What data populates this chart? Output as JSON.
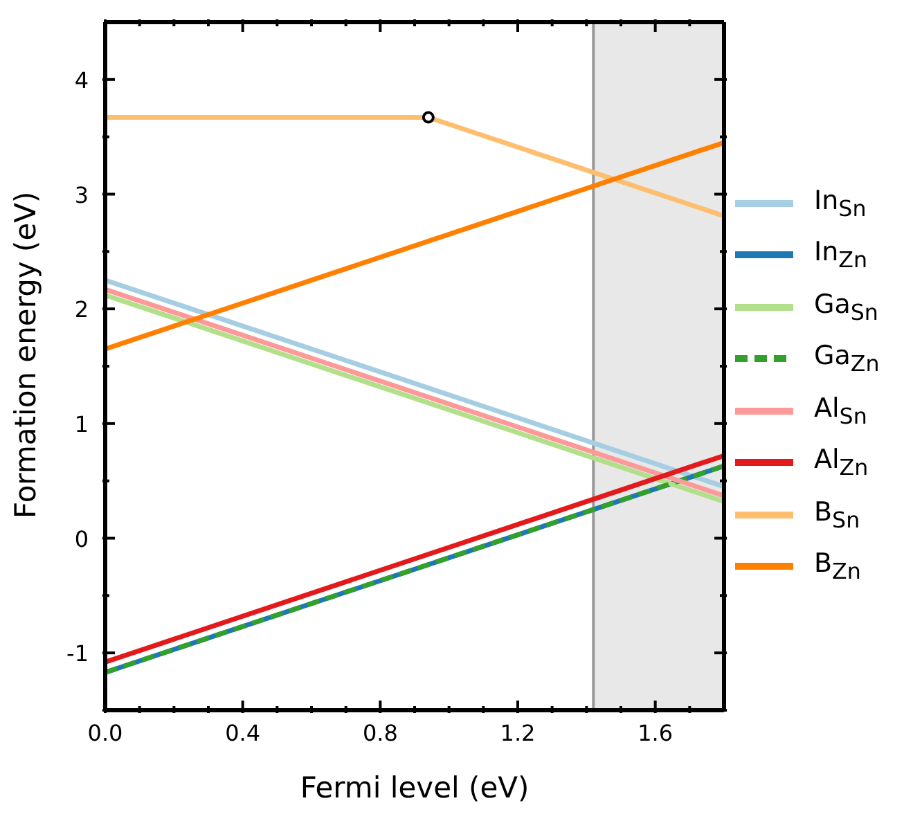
{
  "chart_data": {
    "type": "line",
    "xlabel": "Fermi level (eV)",
    "ylabel": "Formation energy (eV)",
    "xlim": [
      0,
      1.8
    ],
    "ylim": [
      -1.5,
      4.5
    ],
    "xticks": [
      {
        "value": 0,
        "label": "0.0"
      },
      {
        "value": 0.1,
        "label": null
      },
      {
        "value": 0.2,
        "label": null
      },
      {
        "value": 0.3,
        "label": null
      },
      {
        "value": 0.4,
        "label": "0.4"
      },
      {
        "value": 0.5,
        "label": null
      },
      {
        "value": 0.6,
        "label": null
      },
      {
        "value": 0.7,
        "label": null
      },
      {
        "value": 0.8,
        "label": "0.8"
      },
      {
        "value": 0.9,
        "label": null
      },
      {
        "value": 1,
        "label": null
      },
      {
        "value": 1.1,
        "label": null
      },
      {
        "value": 1.2,
        "label": "1.2"
      },
      {
        "value": 1.3,
        "label": null
      },
      {
        "value": 1.4,
        "label": null
      },
      {
        "value": 1.5,
        "label": null
      },
      {
        "value": 1.6,
        "label": "1.6"
      },
      {
        "value": 1.7,
        "label": null
      }
    ],
    "yticks": [
      {
        "value": -1.5,
        "label": null
      },
      -1,
      {
        "value": -0.5,
        "label": null
      },
      0,
      {
        "value": 0.5,
        "label": null
      },
      1,
      {
        "value": 1.5,
        "label": null
      },
      2,
      {
        "value": 2.5,
        "label": null
      },
      3,
      {
        "value": 3.5,
        "label": null
      },
      4
    ],
    "legend": "right",
    "marker": "none",
    "line_style": "solid",
    "bands": [
      {
        "axis": "x",
        "from": 1.42,
        "to": 1.8,
        "color": "#e8e8e8"
      }
    ],
    "ref_lines": [
      {
        "axis": "x",
        "value": 1.42,
        "color": "#999999"
      }
    ],
    "series": [
      {
        "name": "In$_{Sn}$",
        "color": "#a6cee3",
        "x": [
          0,
          1.8
        ],
        "values": [
          2.25,
          0.45
        ]
      },
      {
        "name": "In$_{Zn}$",
        "color": "#1f78b4",
        "x": [
          0,
          1.8
        ],
        "values": [
          -1.17,
          0.63
        ]
      },
      {
        "name": "Ga$_{Sn}$",
        "color": "#b2df8a",
        "x": [
          0,
          1.8
        ],
        "values": [
          2.12,
          0.32
        ]
      },
      {
        "name": "Ga$_{Zn}$",
        "color": "#33a02c",
        "x": [
          0,
          1.8
        ],
        "values": [
          -1.17,
          0.63
        ],
        "line_style": "dashed"
      },
      {
        "name": "Al$_{Sn}$",
        "color": "#fb9a99",
        "x": [
          0,
          1.8
        ],
        "values": [
          2.17,
          0.37
        ]
      },
      {
        "name": "Al$_{Zn}$",
        "color": "#e31a1c",
        "x": [
          0,
          1.8
        ],
        "values": [
          -1.08,
          0.72
        ]
      },
      {
        "name": "B$_{Sn}$",
        "color": "#fdbf6f",
        "x": [
          0,
          0.94,
          1.8
        ],
        "values": [
          3.67,
          3.67,
          2.81
        ]
      },
      {
        "name": "B$_{Zn}$",
        "color": "#ff7f00",
        "x": [
          0,
          1.8
        ],
        "values": [
          1.65,
          3.45
        ]
      },
      {
        "type": "scatter",
        "color": "#000000",
        "marker": "circle",
        "x": [
          0.94
        ],
        "values": [
          3.67
        ]
      }
    ]
  }
}
